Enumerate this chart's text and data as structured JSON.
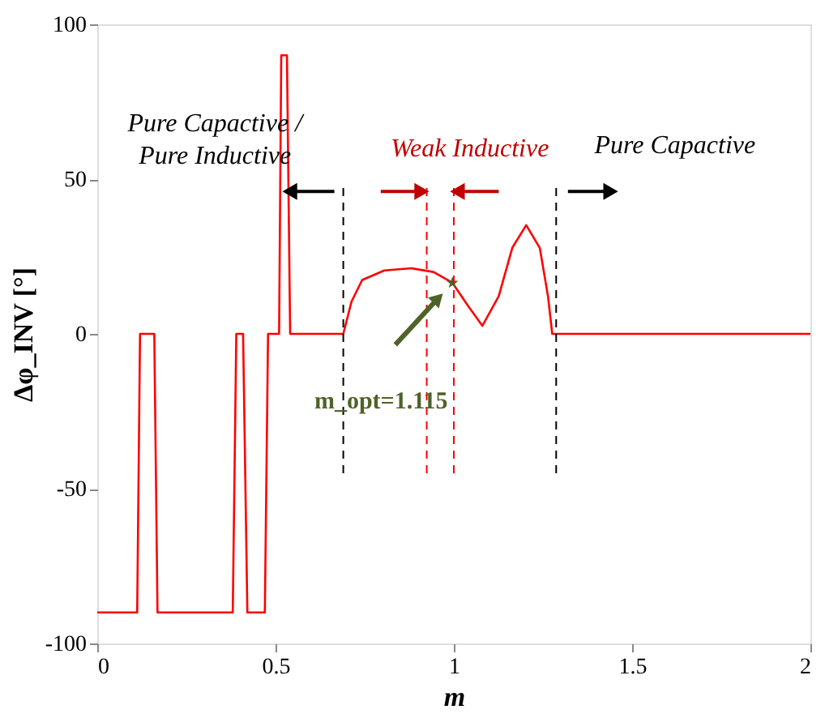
{
  "chart_data": {
    "type": "line",
    "xlabel": "m",
    "ylabel": "Δφ_INV [°]",
    "xlim": [
      0,
      2
    ],
    "xticks": [
      0,
      0.5,
      1,
      1.5,
      2
    ],
    "ylim": [
      -100,
      100
    ],
    "yticks": [
      -100,
      -50,
      0,
      50,
      100
    ],
    "grid": false,
    "line_style": "solid",
    "marker": "none",
    "series": [
      {
        "color": "#ff0000",
        "x": [
          0,
          0.112,
          0.12,
          0.16,
          0.169,
          0.38,
          0.39,
          0.409,
          0.421,
          0.47,
          0.479,
          0.51,
          0.516,
          0.532,
          0.541,
          0.69,
          0.713,
          0.743,
          0.805,
          0.881,
          0.943,
          0.996,
          1.042,
          1.08,
          1.126,
          1.164,
          1.203,
          1.241,
          1.264,
          1.276,
          2
        ],
        "values": [
          -90,
          -90,
          0,
          0,
          -90,
          -90,
          0,
          0,
          -90,
          -90,
          0,
          0,
          90,
          90,
          0,
          0,
          10.4,
          17.4,
          20.5,
          21.2,
          20,
          16.5,
          8.7,
          2.6,
          12.2,
          27.8,
          35.1,
          27.8,
          12.2,
          0,
          0
        ]
      },
      {
        "type": "scatter",
        "marker": "star",
        "color": "#4f6228",
        "x": [
          0.996
        ],
        "values": [
          16.5
        ]
      }
    ],
    "ref_lines": [
      {
        "axis": "x",
        "value": 0.69,
        "color": "#000000",
        "line_style": "dashed"
      },
      {
        "axis": "x",
        "value": 0.924,
        "color": "#ff0000",
        "line_style": "dashed"
      },
      {
        "axis": "x",
        "value": 1.0,
        "color": "#ff0000",
        "line_style": "dashed"
      },
      {
        "axis": "x",
        "value": 1.287,
        "color": "#000000",
        "line_style": "dashed"
      }
    ],
    "annotations": [
      "Pure Capactive /\nPure Inductive",
      "Weak Inductive",
      "Pure Capactive",
      "m_opt=1.115"
    ]
  }
}
